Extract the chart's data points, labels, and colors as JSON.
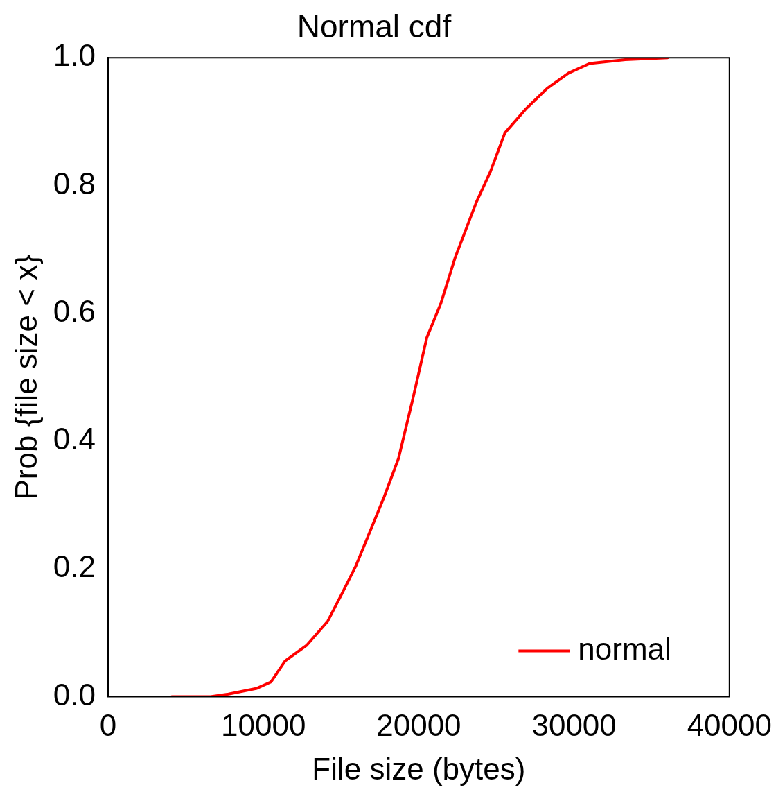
{
  "chart_data": {
    "type": "line",
    "title": "Normal cdf",
    "xlabel": "File size (bytes)",
    "ylabel": "Prob {file size < x}",
    "xlim": [
      0,
      40000
    ],
    "xticks": [
      0,
      10000,
      20000,
      30000,
      40000
    ],
    "ylim": [
      0,
      1
    ],
    "yticks": [
      {
        "value": 0,
        "label": "0.0"
      },
      0.2,
      0.4,
      0.6,
      0.8,
      {
        "value": 1,
        "label": "1.0"
      }
    ],
    "grid": false,
    "legend": "bottom right",
    "marker": "none",
    "line_style": "solid",
    "series": [
      {
        "name": "normal",
        "color": "#ff0000",
        "x": [
          4100,
          6600,
          7750,
          9580,
          10490,
          11400,
          12770,
          14140,
          15050,
          15960,
          16870,
          17780,
          18700,
          19610,
          20520,
          21430,
          22340,
          23710,
          24620,
          25540,
          26900,
          28270,
          29640,
          31000,
          33290,
          36020
        ],
        "values": [
          0,
          0,
          0.004,
          0.013,
          0.023,
          0.056,
          0.08,
          0.118,
          0.161,
          0.205,
          0.259,
          0.313,
          0.373,
          0.465,
          0.562,
          0.616,
          0.687,
          0.774,
          0.822,
          0.882,
          0.92,
          0.952,
          0.976,
          0.991,
          0.997,
          1.0
        ]
      }
    ]
  }
}
